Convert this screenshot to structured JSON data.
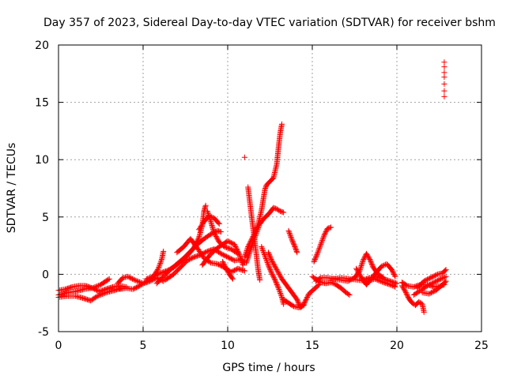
{
  "chart_data": {
    "type": "scatter",
    "title": "Day 357 of 2023, Sidereal Day-to-day VTEC variation (SDTVAR) for receiver bshm",
    "xlabel": "GPS time / hours",
    "ylabel": "SDTVAR / TECUs",
    "xlim": [
      0,
      25
    ],
    "ylim": [
      -5,
      20
    ],
    "xticks": [
      "0",
      "5",
      "10",
      "15",
      "20",
      "25"
    ],
    "yticks": [
      "-5",
      "0",
      "5",
      "10",
      "15",
      "20"
    ],
    "grid": true,
    "marker": "+",
    "color": "#ff0000",
    "series": [
      {
        "name": "bshm",
        "tracks": [
          [
            [
              0.0,
              -1.8
            ],
            [
              0.5,
              -1.6
            ],
            [
              1.0,
              -1.5
            ],
            [
              1.5,
              -1.3
            ],
            [
              2.0,
              -1.2
            ],
            [
              2.5,
              -0.9
            ],
            [
              3.0,
              -0.4
            ]
          ],
          [
            [
              0.0,
              -1.4
            ],
            [
              0.4,
              -1.3
            ],
            [
              0.8,
              -1.1
            ],
            [
              1.2,
              -1.0
            ],
            [
              1.6,
              -1.0
            ],
            [
              2.0,
              -1.2
            ],
            [
              2.4,
              -1.5
            ],
            [
              2.8,
              -1.3
            ],
            [
              3.2,
              -1.1
            ],
            [
              3.6,
              -1.0
            ],
            [
              4.0,
              -1.1
            ]
          ],
          [
            [
              0.0,
              -2.0
            ],
            [
              0.5,
              -1.9
            ],
            [
              1.0,
              -1.9
            ],
            [
              1.5,
              -2.1
            ],
            [
              1.9,
              -2.3
            ],
            [
              2.3,
              -1.9
            ],
            [
              2.8,
              -1.6
            ],
            [
              3.3,
              -1.4
            ],
            [
              3.7,
              -1.2
            ]
          ],
          [
            [
              3.5,
              -0.8
            ],
            [
              3.8,
              -0.3
            ],
            [
              4.1,
              -0.2
            ],
            [
              4.5,
              -0.5
            ],
            [
              5.0,
              -0.8
            ],
            [
              5.4,
              -0.6
            ],
            [
              5.8,
              -0.3
            ],
            [
              6.2,
              -0.6
            ]
          ],
          [
            [
              3.6,
              -1.3
            ],
            [
              4.0,
              -1.2
            ],
            [
              4.4,
              -1.3
            ],
            [
              4.8,
              -1.0
            ],
            [
              5.2,
              -0.6
            ],
            [
              5.6,
              -0.2
            ],
            [
              5.9,
              0.5
            ],
            [
              6.1,
              1.3
            ],
            [
              6.2,
              2.0
            ]
          ],
          [
            [
              5.2,
              -0.4
            ],
            [
              5.6,
              -0.2
            ],
            [
              6.0,
              0.1
            ],
            [
              6.4,
              0.3
            ],
            [
              6.8,
              0.6
            ],
            [
              7.2,
              1.1
            ],
            [
              7.6,
              1.6
            ],
            [
              8.0,
              2.3
            ],
            [
              8.3,
              3.2
            ],
            [
              8.5,
              4.3
            ],
            [
              8.6,
              5.5
            ],
            [
              8.7,
              6.0
            ]
          ],
          [
            [
              5.8,
              -0.8
            ],
            [
              6.2,
              -0.2
            ],
            [
              6.6,
              0.4
            ],
            [
              7.0,
              0.9
            ],
            [
              7.4,
              1.4
            ],
            [
              7.8,
              2.0
            ],
            [
              8.2,
              2.6
            ],
            [
              8.6,
              3.1
            ],
            [
              9.0,
              3.5
            ],
            [
              9.4,
              3.8
            ],
            [
              9.6,
              3.7
            ]
          ],
          [
            [
              6.3,
              -0.5
            ],
            [
              6.8,
              0.0
            ],
            [
              7.2,
              0.6
            ],
            [
              7.6,
              1.2
            ],
            [
              8.0,
              1.5
            ],
            [
              8.4,
              1.7
            ],
            [
              8.8,
              2.0
            ],
            [
              9.2,
              2.2
            ],
            [
              9.6,
              1.8
            ],
            [
              10.0,
              1.5
            ],
            [
              10.4,
              1.2
            ],
            [
              10.8,
              1.3
            ],
            [
              11.0,
              1.0
            ]
          ],
          [
            [
              7.0,
              1.9
            ],
            [
              7.4,
              2.4
            ],
            [
              7.8,
              3.1
            ],
            [
              8.2,
              2.3
            ],
            [
              8.6,
              1.4
            ],
            [
              9.0,
              1.0
            ],
            [
              9.4,
              0.9
            ],
            [
              9.8,
              0.6
            ],
            [
              10.2,
              0.2
            ],
            [
              10.6,
              0.5
            ],
            [
              11.0,
              0.3
            ]
          ],
          [
            [
              8.8,
              5.5
            ],
            [
              9.0,
              4.6
            ],
            [
              9.2,
              3.6
            ],
            [
              9.5,
              2.8
            ],
            [
              9.8,
              2.4
            ],
            [
              10.2,
              2.2
            ],
            [
              10.6,
              1.8
            ]
          ],
          [
            [
              8.5,
              0.8
            ],
            [
              8.9,
              1.6
            ],
            [
              9.3,
              2.2
            ],
            [
              9.7,
              2.6
            ],
            [
              10.0,
              2.9
            ],
            [
              10.4,
              2.6
            ],
            [
              10.7,
              1.7
            ],
            [
              10.9,
              0.8
            ]
          ],
          [
            [
              8.3,
              3.9
            ],
            [
              8.6,
              4.6
            ],
            [
              8.9,
              5.1
            ],
            [
              9.2,
              4.9
            ],
            [
              9.5,
              4.4
            ]
          ],
          [
            [
              9.7,
              1.1
            ],
            [
              9.9,
              0.5
            ],
            [
              10.1,
              0.0
            ],
            [
              10.3,
              -0.4
            ]
          ],
          [
            [
              11.0,
              10.2
            ]
          ],
          [
            [
              11.2,
              7.6
            ],
            [
              11.3,
              6.4
            ],
            [
              11.4,
              5.2
            ],
            [
              11.5,
              4.0
            ],
            [
              11.6,
              2.9
            ],
            [
              11.7,
              1.6
            ],
            [
              11.8,
              0.4
            ],
            [
              11.9,
              -0.5
            ]
          ],
          [
            [
              11.0,
              1.5
            ],
            [
              11.2,
              2.4
            ],
            [
              11.4,
              3.0
            ],
            [
              11.6,
              3.6
            ],
            [
              11.8,
              4.4
            ],
            [
              12.0,
              5.6
            ],
            [
              12.1,
              6.5
            ],
            [
              12.2,
              7.4
            ],
            [
              12.3,
              7.8
            ],
            [
              12.5,
              8.1
            ],
            [
              12.7,
              8.4
            ],
            [
              12.9,
              9.6
            ],
            [
              13.0,
              11.0
            ],
            [
              13.1,
              12.3
            ],
            [
              13.2,
              13.1
            ]
          ],
          [
            [
              11.1,
              1.0
            ],
            [
              11.3,
              1.9
            ],
            [
              11.5,
              2.8
            ],
            [
              11.7,
              3.6
            ],
            [
              11.9,
              4.4
            ],
            [
              12.1,
              4.8
            ],
            [
              12.3,
              5.1
            ],
            [
              12.5,
              5.4
            ],
            [
              12.7,
              5.8
            ],
            [
              12.9,
              5.7
            ],
            [
              13.1,
              5.5
            ],
            [
              13.3,
              5.4
            ]
          ],
          [
            [
              12.0,
              2.4
            ],
            [
              12.2,
              1.6
            ],
            [
              12.4,
              0.8
            ],
            [
              12.6,
              0.1
            ],
            [
              12.8,
              -0.5
            ],
            [
              13.0,
              -1.2
            ],
            [
              13.2,
              -2.0
            ],
            [
              13.3,
              -2.6
            ]
          ],
          [
            [
              12.4,
              1.9
            ],
            [
              12.6,
              1.2
            ],
            [
              12.9,
              0.4
            ],
            [
              13.2,
              -0.4
            ],
            [
              13.5,
              -1.0
            ],
            [
              13.8,
              -1.6
            ],
            [
              14.1,
              -2.2
            ],
            [
              14.3,
              -2.9
            ],
            [
              14.5,
              -2.7
            ]
          ],
          [
            [
              13.6,
              3.8
            ],
            [
              13.8,
              3.0
            ],
            [
              14.0,
              2.3
            ],
            [
              14.1,
              1.9
            ]
          ],
          [
            [
              13.3,
              -2.2
            ],
            [
              13.6,
              -2.5
            ],
            [
              13.9,
              -2.8
            ],
            [
              14.2,
              -2.9
            ],
            [
              14.5,
              -2.6
            ],
            [
              14.8,
              -1.7
            ],
            [
              15.1,
              -1.3
            ],
            [
              15.4,
              -0.9
            ]
          ],
          [
            [
              15.0,
              -0.2
            ],
            [
              15.2,
              -0.4
            ],
            [
              15.5,
              -0.7
            ],
            [
              15.8,
              -0.8
            ],
            [
              16.1,
              -0.7
            ],
            [
              16.4,
              -0.9
            ],
            [
              16.7,
              -1.2
            ],
            [
              17.0,
              -1.6
            ],
            [
              17.2,
              -1.8
            ]
          ],
          [
            [
              15.1,
              1.1
            ],
            [
              15.3,
              1.8
            ],
            [
              15.5,
              2.6
            ],
            [
              15.7,
              3.4
            ],
            [
              15.9,
              4.0
            ],
            [
              16.1,
              4.1
            ]
          ],
          [
            [
              15.2,
              -0.6
            ],
            [
              15.5,
              -0.3
            ],
            [
              15.9,
              -0.3
            ],
            [
              16.3,
              -0.4
            ],
            [
              16.7,
              -0.5
            ],
            [
              17.1,
              -0.6
            ],
            [
              17.5,
              -0.3
            ],
            [
              17.8,
              0.3
            ],
            [
              18.0,
              1.2
            ],
            [
              18.2,
              1.8
            ],
            [
              18.4,
              1.3
            ],
            [
              18.6,
              0.6
            ],
            [
              18.9,
              0.0
            ],
            [
              19.2,
              -0.3
            ]
          ],
          [
            [
              16.2,
              -0.4
            ],
            [
              16.7,
              -0.3
            ],
            [
              17.2,
              -0.4
            ],
            [
              17.7,
              -0.5
            ],
            [
              18.2,
              -0.6
            ],
            [
              18.7,
              -0.4
            ],
            [
              19.2,
              -0.7
            ],
            [
              19.6,
              -0.9
            ],
            [
              19.9,
              -1.1
            ]
          ],
          [
            [
              17.6,
              0.5
            ],
            [
              17.9,
              -0.3
            ],
            [
              18.2,
              -0.9
            ],
            [
              18.5,
              -0.4
            ],
            [
              18.8,
              0.2
            ],
            [
              19.1,
              0.7
            ],
            [
              19.4,
              0.9
            ],
            [
              19.7,
              0.4
            ],
            [
              19.9,
              -0.2
            ]
          ],
          [
            [
              18.0,
              -0.5
            ],
            [
              18.4,
              -0.3
            ],
            [
              18.8,
              -0.2
            ],
            [
              19.2,
              -0.4
            ],
            [
              19.6,
              -0.6
            ],
            [
              20.0,
              -0.8
            ]
          ],
          [
            [
              20.3,
              -0.7
            ],
            [
              20.6,
              -1.0
            ],
            [
              21.0,
              -1.1
            ],
            [
              21.4,
              -0.9
            ],
            [
              21.8,
              -0.9
            ],
            [
              22.2,
              -1.1
            ],
            [
              22.6,
              -1.0
            ],
            [
              22.8,
              -0.9
            ]
          ],
          [
            [
              20.3,
              -1.0
            ],
            [
              20.5,
              -1.5
            ],
            [
              20.7,
              -2.1
            ],
            [
              20.9,
              -2.5
            ],
            [
              21.1,
              -2.7
            ],
            [
              21.3,
              -2.4
            ],
            [
              21.5,
              -2.6
            ],
            [
              21.6,
              -3.3
            ]
          ],
          [
            [
              21.0,
              -1.8
            ],
            [
              21.4,
              -1.4
            ],
            [
              21.8,
              -1.0
            ],
            [
              22.2,
              -0.7
            ],
            [
              22.6,
              -0.4
            ],
            [
              22.9,
              -0.2
            ]
          ],
          [
            [
              21.2,
              -1.2
            ],
            [
              21.6,
              -0.6
            ],
            [
              22.0,
              -0.3
            ],
            [
              22.4,
              0.0
            ],
            [
              22.7,
              0.1
            ],
            [
              22.9,
              0.4
            ]
          ],
          [
            [
              21.5,
              -1.6
            ],
            [
              21.9,
              -1.7
            ],
            [
              22.3,
              -1.4
            ],
            [
              22.7,
              -0.9
            ],
            [
              22.9,
              -0.6
            ]
          ],
          [
            [
              22.8,
              18.5
            ],
            [
              22.8,
              18.1
            ],
            [
              22.8,
              17.6
            ],
            [
              22.8,
              17.2
            ],
            [
              22.8,
              16.6
            ],
            [
              22.8,
              16.0
            ],
            [
              22.8,
              15.5
            ]
          ]
        ]
      }
    ]
  }
}
